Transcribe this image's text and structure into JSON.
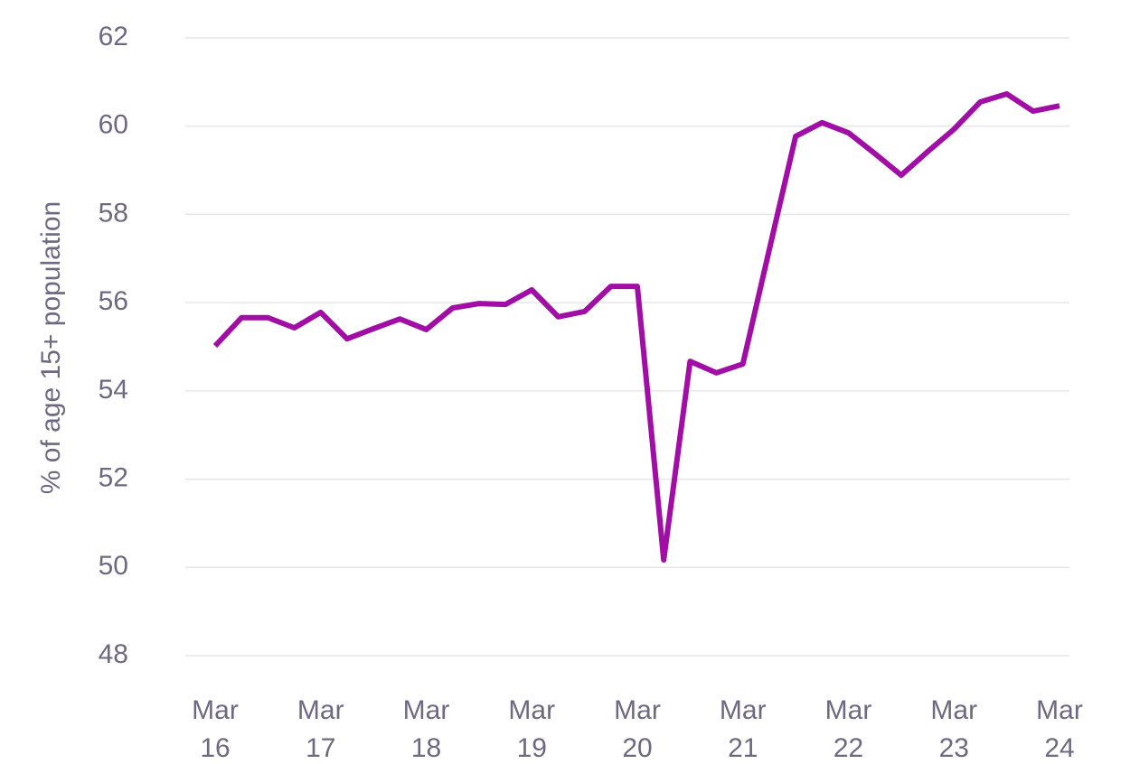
{
  "chart_data": {
    "type": "line",
    "y_label": "% of age 15+ population",
    "categories": [
      "Mar 16",
      null,
      null,
      null,
      "Mar 17",
      null,
      null,
      null,
      "Mar 18",
      null,
      null,
      null,
      "Mar 19",
      null,
      null,
      null,
      "Mar 20",
      null,
      null,
      null,
      "Mar 21",
      null,
      null,
      null,
      "Mar 22",
      null,
      null,
      null,
      "Mar 23",
      null,
      null,
      null,
      "Mar 24"
    ],
    "series": [
      {
        "color": "#a10ea6",
        "values": [
          55.02,
          55.66,
          55.66,
          55.43,
          55.78,
          55.18,
          55.41,
          55.63,
          55.39,
          55.88,
          55.98,
          55.96,
          56.29,
          55.68,
          55.8,
          56.37,
          56.37,
          50.17,
          54.67,
          54.41,
          54.61,
          57.2,
          59.77,
          60.08,
          59.85,
          59.38,
          58.89,
          59.42,
          59.93,
          60.55,
          60.73,
          60.34,
          60.46
        ]
      }
    ],
    "ylim": [
      48,
      62
    ],
    "yticks": [
      48,
      50,
      52,
      54,
      56,
      58,
      60,
      62
    ],
    "grid": true
  }
}
